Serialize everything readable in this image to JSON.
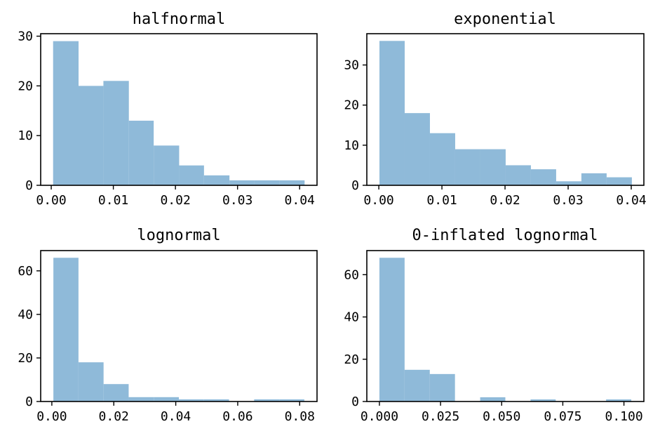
{
  "figure": {
    "bar_color": "#8fbad9",
    "axis_color": "#000000",
    "background": "#ffffff"
  },
  "chart_data": [
    {
      "type": "bar",
      "title": "halfnormal",
      "bin_edges": [
        0.0003,
        0.0044,
        0.0084,
        0.0125,
        0.0165,
        0.0206,
        0.0246,
        0.0287,
        0.0327,
        0.0368,
        0.0408
      ],
      "values": [
        29,
        20,
        21,
        13,
        8,
        4,
        2,
        1,
        1,
        1
      ],
      "xlim": [
        -0.0017,
        0.0428
      ],
      "ylim": [
        0,
        30.5
      ],
      "xticks": [
        0.0,
        0.01,
        0.02,
        0.03,
        0.04
      ],
      "xtick_labels": [
        "0.00",
        "0.01",
        "0.02",
        "0.03",
        "0.04"
      ],
      "yticks": [
        0,
        10,
        20,
        30
      ],
      "ytick_labels": [
        "0",
        "10",
        "20",
        "30"
      ]
    },
    {
      "type": "bar",
      "title": "exponential",
      "bin_edges": [
        0.0001,
        0.0041,
        0.0081,
        0.0121,
        0.0161,
        0.0201,
        0.0241,
        0.0281,
        0.0321,
        0.0361,
        0.0401
      ],
      "values": [
        36,
        18,
        13,
        9,
        9,
        5,
        4,
        1,
        3,
        2
      ],
      "xlim": [
        -0.0019,
        0.042
      ],
      "ylim": [
        0,
        37.8
      ],
      "xticks": [
        0.0,
        0.01,
        0.02,
        0.03,
        0.04
      ],
      "xtick_labels": [
        "0.00",
        "0.01",
        "0.02",
        "0.03",
        "0.04"
      ],
      "yticks": [
        0,
        10,
        20,
        30
      ],
      "ytick_labels": [
        "0",
        "10",
        "20",
        "30"
      ]
    },
    {
      "type": "bar",
      "title": "lognormal",
      "bin_edges": [
        0.0005,
        0.0086,
        0.0167,
        0.0248,
        0.0329,
        0.041,
        0.0491,
        0.0572,
        0.0653,
        0.0734,
        0.0815
      ],
      "values": [
        66,
        18,
        8,
        2,
        2,
        1,
        1,
        0,
        1,
        1
      ],
      "xlim": [
        -0.0036,
        0.0856
      ],
      "ylim": [
        0,
        69.3
      ],
      "xticks": [
        0.0,
        0.02,
        0.04,
        0.06,
        0.08
      ],
      "xtick_labels": [
        "0.00",
        "0.02",
        "0.04",
        "0.06",
        "0.08"
      ],
      "yticks": [
        0,
        20,
        40,
        60
      ],
      "ytick_labels": [
        "0",
        "20",
        "40",
        "60"
      ]
    },
    {
      "type": "bar",
      "title": "0-inflated lognormal",
      "bin_edges": [
        0.0,
        0.0103,
        0.0206,
        0.0309,
        0.0412,
        0.0515,
        0.0618,
        0.0721,
        0.0824,
        0.0927,
        0.103
      ],
      "values": [
        68,
        15,
        13,
        0,
        2,
        0,
        1,
        0,
        0,
        1
      ],
      "xlim": [
        -0.00515,
        0.10815
      ],
      "ylim": [
        0,
        71.4
      ],
      "xticks": [
        0.0,
        0.025,
        0.05,
        0.075,
        0.1
      ],
      "xtick_labels": [
        "0.000",
        "0.025",
        "0.050",
        "0.075",
        "0.100"
      ],
      "yticks": [
        0,
        20,
        40,
        60
      ],
      "ytick_labels": [
        "0",
        "20",
        "40",
        "60"
      ]
    }
  ]
}
